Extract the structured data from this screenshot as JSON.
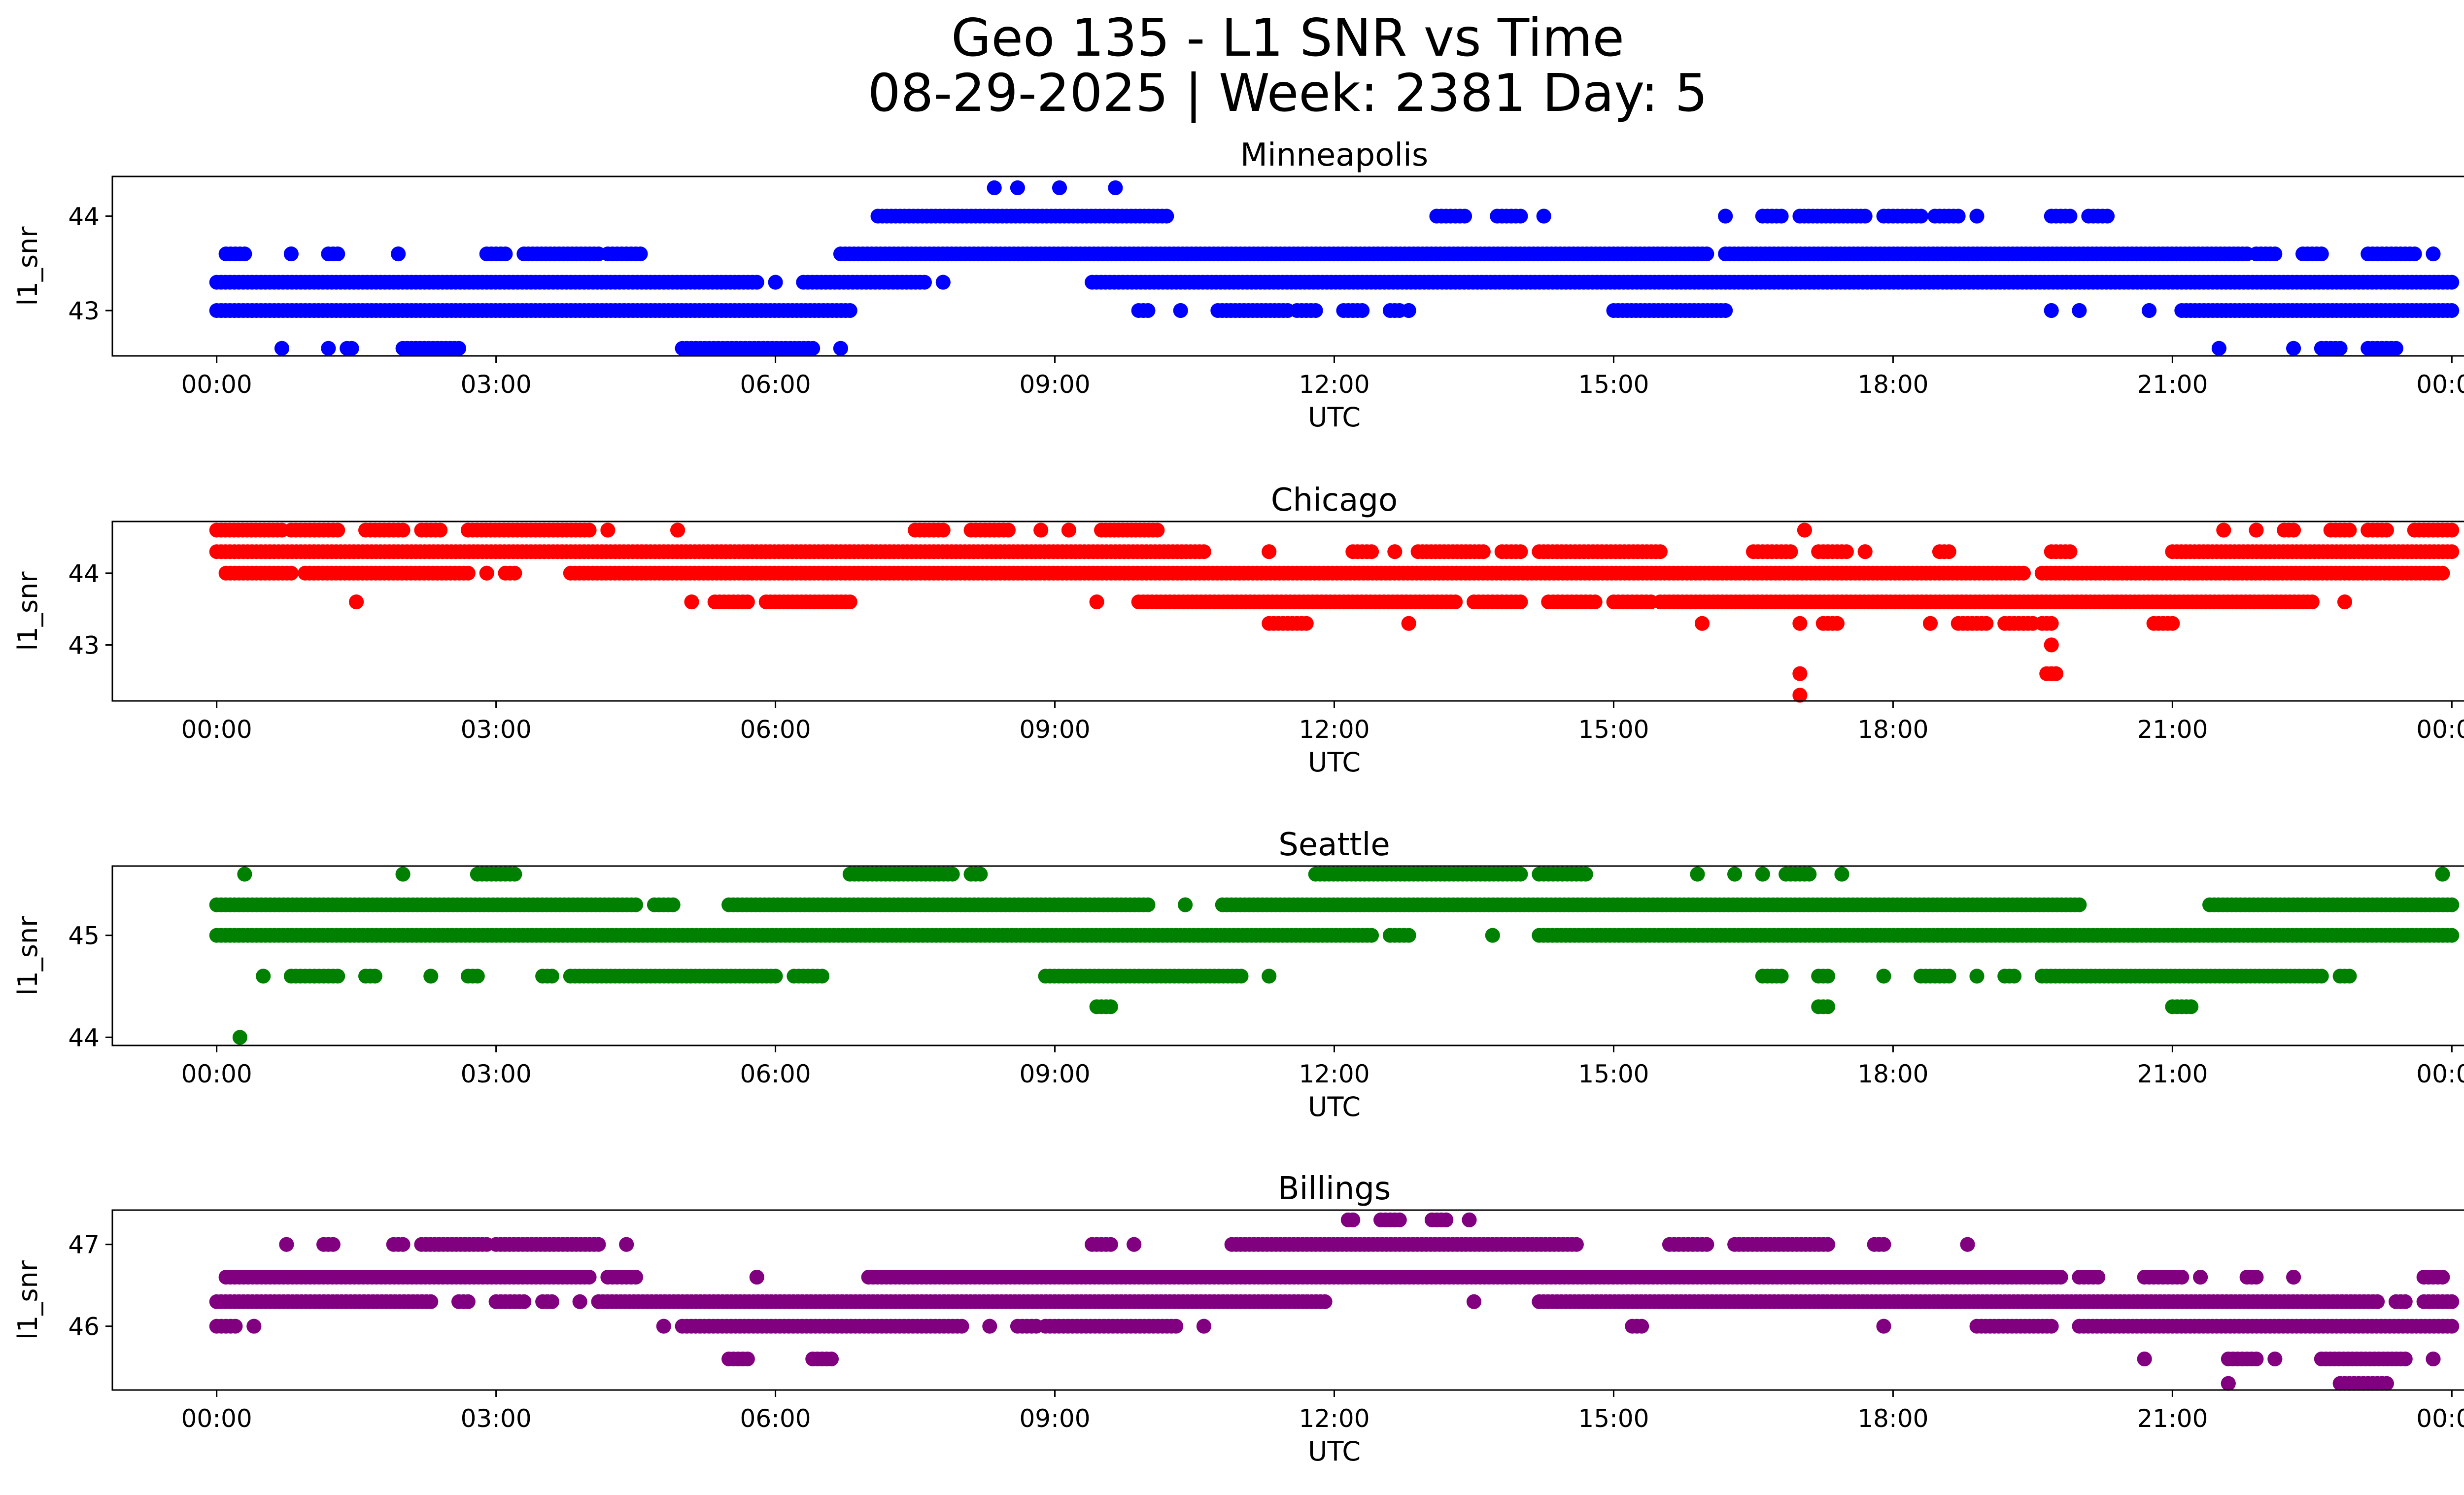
{
  "figure": {
    "title_line1": "Geo 135 - L1 SNR vs Time",
    "title_line2": "08-29-2025 | Week: 2381 Day: 5"
  },
  "chart_data": [
    {
      "type": "scatter",
      "title": "Minneapolis",
      "xlabel": "UTC",
      "ylabel": "l1_snr",
      "color": "#0000ff",
      "xlim_hours": [
        -1.12,
        25.12
      ],
      "ylim": [
        42.52,
        44.42
      ],
      "yticks": [
        43,
        44
      ],
      "xticks_hours": [
        0,
        3,
        6,
        9,
        12,
        15,
        18,
        21,
        24
      ],
      "xtick_labels": [
        "00:00",
        "03:00",
        "06:00",
        "09:00",
        "12:00",
        "15:00",
        "18:00",
        "21:00",
        "00:00"
      ],
      "series": [
        {
          "y": 44.3,
          "segments": [
            [
              8.35,
              8.35
            ],
            [
              8.6,
              8.6
            ],
            [
              9.05,
              9.05
            ],
            [
              9.65,
              9.65
            ]
          ]
        },
        {
          "y": 44.0,
          "segments": [
            [
              7.1,
              10.2
            ],
            [
              13.1,
              13.4
            ],
            [
              13.75,
              14.0
            ],
            [
              14.25,
              14.25
            ],
            [
              16.2,
              16.2
            ],
            [
              16.6,
              16.8
            ],
            [
              17.0,
              17.7
            ],
            [
              17.9,
              18.3
            ],
            [
              18.45,
              18.7
            ],
            [
              18.9,
              18.9
            ],
            [
              19.7,
              19.9
            ],
            [
              20.1,
              20.3
            ]
          ]
        },
        {
          "y": 43.6,
          "segments": [
            [
              0.1,
              0.3
            ],
            [
              0.8,
              0.8
            ],
            [
              1.2,
              1.3
            ],
            [
              1.95,
              1.95
            ],
            [
              2.9,
              3.1
            ],
            [
              3.3,
              4.1
            ],
            [
              4.2,
              4.55
            ],
            [
              6.7,
              16.0
            ],
            [
              16.2,
              21.8
            ],
            [
              21.9,
              22.1
            ],
            [
              22.4,
              22.6
            ],
            [
              23.1,
              23.6
            ],
            [
              23.8,
              23.8
            ]
          ]
        },
        {
          "y": 43.3,
          "segments": [
            [
              0.0,
              5.8
            ],
            [
              6.0,
              6.0
            ],
            [
              6.3,
              7.6
            ],
            [
              7.8,
              7.8
            ],
            [
              9.4,
              24.0
            ]
          ]
        },
        {
          "y": 43.0,
          "segments": [
            [
              0.0,
              6.8
            ],
            [
              9.9,
              10.0
            ],
            [
              10.35,
              10.35
            ],
            [
              10.75,
              11.5
            ],
            [
              11.6,
              11.8
            ],
            [
              12.1,
              12.3
            ],
            [
              12.6,
              12.7
            ],
            [
              12.8,
              12.8
            ],
            [
              15.0,
              16.2
            ],
            [
              19.7,
              19.7
            ],
            [
              20.0,
              20.0
            ],
            [
              20.75,
              20.75
            ],
            [
              21.1,
              24.0
            ]
          ]
        },
        {
          "y": 42.6,
          "segments": [
            [
              0.7,
              0.7
            ],
            [
              1.2,
              1.2
            ],
            [
              1.4,
              1.45
            ],
            [
              2.0,
              2.6
            ],
            [
              5.0,
              6.4
            ],
            [
              6.7,
              6.7
            ],
            [
              21.5,
              21.5
            ],
            [
              22.3,
              22.3
            ],
            [
              22.6,
              22.8
            ],
            [
              23.1,
              23.4
            ]
          ]
        }
      ]
    },
    {
      "type": "scatter",
      "title": "Chicago",
      "xlabel": "UTC",
      "ylabel": "l1_snr",
      "color": "#ff0000",
      "xlim_hours": [
        -1.12,
        25.12
      ],
      "ylim": [
        42.22,
        44.72
      ],
      "yticks": [
        43,
        44
      ],
      "xticks_hours": [
        0,
        3,
        6,
        9,
        12,
        15,
        18,
        21,
        24
      ],
      "xtick_labels": [
        "00:00",
        "03:00",
        "06:00",
        "09:00",
        "12:00",
        "15:00",
        "18:00",
        "21:00",
        "00:00"
      ],
      "series": [
        {
          "y": 44.6,
          "segments": [
            [
              0.0,
              0.7
            ],
            [
              0.8,
              1.3
            ],
            [
              1.6,
              2.0
            ],
            [
              2.2,
              2.4
            ],
            [
              2.7,
              4.0
            ],
            [
              4.2,
              4.2
            ],
            [
              4.95,
              4.95
            ],
            [
              7.5,
              7.8
            ],
            [
              8.1,
              8.5
            ],
            [
              8.85,
              8.85
            ],
            [
              9.15,
              9.15
            ],
            [
              9.5,
              10.1
            ],
            [
              17.05,
              17.05
            ],
            [
              21.55,
              21.55
            ],
            [
              21.9,
              21.9
            ],
            [
              22.2,
              22.3
            ],
            [
              22.7,
              22.9
            ],
            [
              23.1,
              23.3
            ],
            [
              23.6,
              24.0
            ]
          ]
        },
        {
          "y": 44.3,
          "segments": [
            [
              0.0,
              10.6
            ],
            [
              11.3,
              11.3
            ],
            [
              12.2,
              12.4
            ],
            [
              12.65,
              12.65
            ],
            [
              12.9,
              13.6
            ],
            [
              13.8,
              14.0
            ],
            [
              14.2,
              15.5
            ],
            [
              16.5,
              16.9
            ],
            [
              17.2,
              17.5
            ],
            [
              17.7,
              17.7
            ],
            [
              18.5,
              18.6
            ],
            [
              19.7,
              19.9
            ],
            [
              21.0,
              24.0
            ]
          ]
        },
        {
          "y": 44.0,
          "segments": [
            [
              0.1,
              0.8
            ],
            [
              0.95,
              2.7
            ],
            [
              2.9,
              2.9
            ],
            [
              3.1,
              3.2
            ],
            [
              3.8,
              19.4
            ],
            [
              19.6,
              23.9
            ]
          ]
        },
        {
          "y": 43.6,
          "segments": [
            [
              1.5,
              1.5
            ],
            [
              5.1,
              5.1
            ],
            [
              5.35,
              5.7
            ],
            [
              5.9,
              6.8
            ],
            [
              9.45,
              9.45
            ],
            [
              9.9,
              13.3
            ],
            [
              13.5,
              14.0
            ],
            [
              14.3,
              14.8
            ],
            [
              15.0,
              15.4
            ],
            [
              15.5,
              22.5
            ],
            [
              22.85,
              22.85
            ]
          ]
        },
        {
          "y": 43.3,
          "segments": [
            [
              11.3,
              11.7
            ],
            [
              12.8,
              12.8
            ],
            [
              15.95,
              15.95
            ],
            [
              17.0,
              17.0
            ],
            [
              17.25,
              17.4
            ],
            [
              18.4,
              18.4
            ],
            [
              18.7,
              19.0
            ],
            [
              19.2,
              19.5
            ],
            [
              19.6,
              19.7
            ],
            [
              20.8,
              21.0
            ]
          ]
        },
        {
          "y": 43.0,
          "segments": [
            [
              19.7,
              19.7
            ]
          ]
        },
        {
          "y": 42.6,
          "segments": [
            [
              17.0,
              17.0
            ],
            [
              19.65,
              19.75
            ]
          ]
        },
        {
          "y": 42.3,
          "segments": [
            [
              17.0,
              17.0
            ]
          ]
        }
      ]
    },
    {
      "type": "scatter",
      "title": "Seattle",
      "xlabel": "UTC",
      "ylabel": "l1_snr",
      "color": "#008000",
      "xlim_hours": [
        -1.12,
        25.12
      ],
      "ylim": [
        43.92,
        45.68
      ],
      "yticks": [
        44,
        45
      ],
      "xticks_hours": [
        0,
        3,
        6,
        9,
        12,
        15,
        18,
        21,
        24
      ],
      "xtick_labels": [
        "00:00",
        "03:00",
        "06:00",
        "09:00",
        "12:00",
        "15:00",
        "18:00",
        "21:00",
        "00:00"
      ],
      "series": [
        {
          "y": 45.6,
          "segments": [
            [
              0.3,
              0.3
            ],
            [
              2.0,
              2.0
            ],
            [
              2.8,
              3.2
            ],
            [
              6.8,
              7.9
            ],
            [
              8.1,
              8.2
            ],
            [
              11.8,
              14.0
            ],
            [
              14.2,
              14.7
            ],
            [
              15.9,
              15.9
            ],
            [
              16.3,
              16.3
            ],
            [
              16.6,
              16.6
            ],
            [
              16.85,
              17.1
            ],
            [
              17.45,
              17.45
            ],
            [
              23.9,
              23.9
            ]
          ]
        },
        {
          "y": 45.3,
          "segments": [
            [
              0.0,
              4.5
            ],
            [
              4.7,
              4.9
            ],
            [
              5.5,
              10.0
            ],
            [
              10.4,
              10.4
            ],
            [
              10.8,
              20.0
            ],
            [
              21.4,
              24.0
            ]
          ]
        },
        {
          "y": 45.0,
          "segments": [
            [
              0.0,
              12.4
            ],
            [
              12.6,
              12.8
            ],
            [
              13.7,
              13.7
            ],
            [
              14.2,
              24.0
            ]
          ]
        },
        {
          "y": 44.6,
          "segments": [
            [
              0.5,
              0.5
            ],
            [
              0.8,
              1.3
            ],
            [
              1.6,
              1.7
            ],
            [
              2.3,
              2.3
            ],
            [
              2.7,
              2.8
            ],
            [
              3.5,
              3.6
            ],
            [
              3.8,
              6.0
            ],
            [
              6.2,
              6.5
            ],
            [
              8.9,
              11.0
            ],
            [
              11.3,
              11.3
            ],
            [
              16.6,
              16.8
            ],
            [
              17.2,
              17.3
            ],
            [
              17.9,
              17.9
            ],
            [
              18.3,
              18.6
            ],
            [
              18.9,
              18.9
            ],
            [
              19.2,
              19.3
            ],
            [
              19.6,
              22.6
            ],
            [
              22.8,
              22.9
            ]
          ]
        },
        {
          "y": 44.3,
          "segments": [
            [
              9.45,
              9.6
            ],
            [
              17.2,
              17.3
            ],
            [
              21.0,
              21.2
            ]
          ]
        },
        {
          "y": 44.0,
          "segments": [
            [
              0.25,
              0.25
            ]
          ]
        }
      ]
    },
    {
      "type": "scatter",
      "title": "Billings",
      "xlabel": "UTC",
      "ylabel": "l1_snr",
      "color": "#800080",
      "xlim_hours": [
        -1.12,
        25.12
      ],
      "ylim": [
        45.22,
        47.42
      ],
      "yticks": [
        46,
        47
      ],
      "xticks_hours": [
        0,
        3,
        6,
        9,
        12,
        15,
        18,
        21,
        24
      ],
      "xtick_labels": [
        "00:00",
        "03:00",
        "06:00",
        "09:00",
        "12:00",
        "15:00",
        "18:00",
        "21:00",
        "00:00"
      ],
      "series": [
        {
          "y": 47.3,
          "segments": [
            [
              12.15,
              12.2
            ],
            [
              12.5,
              12.7
            ],
            [
              13.05,
              13.2
            ],
            [
              13.45,
              13.45
            ]
          ]
        },
        {
          "y": 47.0,
          "segments": [
            [
              0.75,
              0.75
            ],
            [
              1.15,
              1.25
            ],
            [
              1.9,
              2.0
            ],
            [
              2.2,
              2.9
            ],
            [
              3.0,
              4.1
            ],
            [
              4.4,
              4.4
            ],
            [
              9.4,
              9.6
            ],
            [
              9.85,
              9.85
            ],
            [
              10.9,
              14.6
            ],
            [
              15.6,
              16.0
            ],
            [
              16.3,
              17.3
            ],
            [
              17.8,
              17.9
            ],
            [
              18.8,
              18.8
            ]
          ]
        },
        {
          "y": 46.6,
          "segments": [
            [
              0.1,
              4.0
            ],
            [
              4.2,
              4.5
            ],
            [
              5.8,
              5.8
            ],
            [
              7.0,
              19.8
            ],
            [
              20.0,
              20.2
            ],
            [
              20.7,
              21.1
            ],
            [
              21.3,
              21.3
            ],
            [
              21.8,
              21.9
            ],
            [
              22.3,
              22.3
            ],
            [
              23.7,
              23.9
            ]
          ]
        },
        {
          "y": 46.3,
          "segments": [
            [
              0.0,
              2.3
            ],
            [
              2.6,
              2.7
            ],
            [
              3.0,
              3.3
            ],
            [
              3.5,
              3.6
            ],
            [
              3.9,
              3.9
            ],
            [
              4.1,
              11.9
            ],
            [
              13.5,
              13.5
            ],
            [
              14.2,
              23.2
            ],
            [
              23.4,
              23.5
            ],
            [
              23.7,
              24.0
            ]
          ]
        },
        {
          "y": 46.0,
          "segments": [
            [
              0.0,
              0.2
            ],
            [
              0.4,
              0.4
            ],
            [
              4.8,
              4.8
            ],
            [
              5.0,
              8.0
            ],
            [
              8.3,
              8.3
            ],
            [
              8.6,
              8.8
            ],
            [
              8.9,
              10.3
            ],
            [
              10.6,
              10.6
            ],
            [
              15.2,
              15.3
            ],
            [
              17.9,
              17.9
            ],
            [
              18.9,
              19.7
            ],
            [
              20.0,
              24.0
            ]
          ]
        },
        {
          "y": 45.6,
          "segments": [
            [
              5.5,
              5.7
            ],
            [
              6.4,
              6.6
            ],
            [
              20.7,
              20.7
            ],
            [
              21.6,
              21.9
            ],
            [
              22.1,
              22.1
            ],
            [
              22.6,
              23.5
            ],
            [
              23.8,
              23.8
            ]
          ]
        },
        {
          "y": 45.3,
          "segments": [
            [
              21.6,
              21.6
            ],
            [
              22.8,
              23.3
            ]
          ]
        }
      ]
    }
  ]
}
